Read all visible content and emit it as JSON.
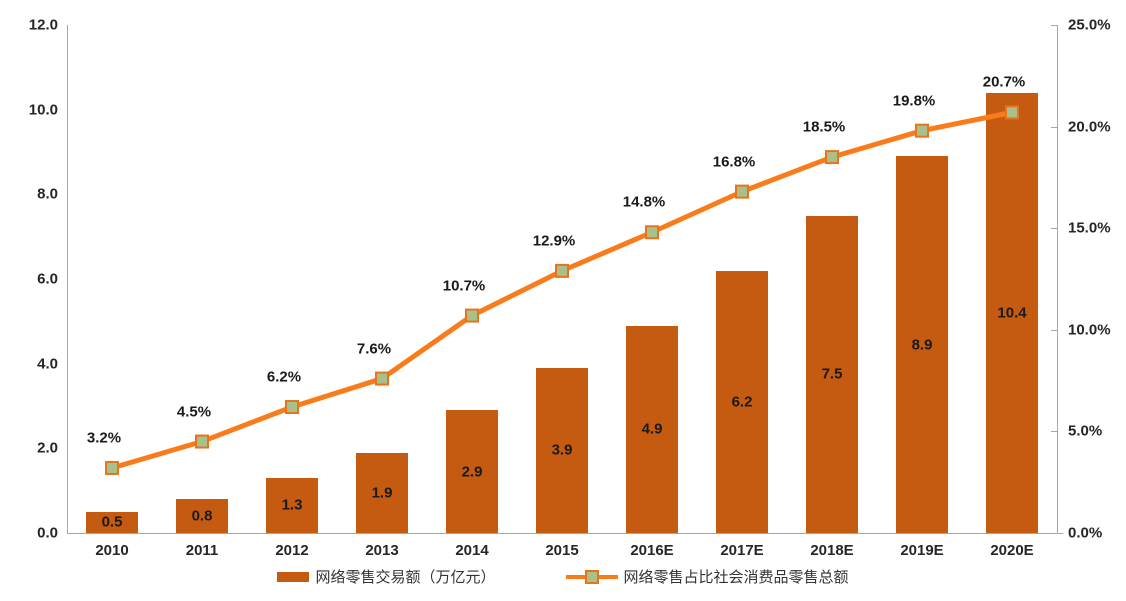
{
  "chart_data": {
    "type": "bar",
    "title": "",
    "categories": [
      "2010",
      "2011",
      "2012",
      "2013",
      "2014",
      "2015",
      "2016E",
      "2017E",
      "2018E",
      "2019E",
      "2020E"
    ],
    "series": [
      {
        "name": "网络零售交易额（万亿元）",
        "type": "bar",
        "axis": "left",
        "values": [
          0.5,
          0.8,
          1.3,
          1.9,
          2.9,
          3.9,
          4.9,
          6.2,
          7.5,
          8.9,
          10.4
        ],
        "labels": [
          "0.5",
          "0.8",
          "1.3",
          "1.9",
          "2.9",
          "3.9",
          "4.9",
          "6.2",
          "7.5",
          "8.9",
          "10.4"
        ],
        "color": "#C55A11"
      },
      {
        "name": "网络零售占比社会消费品零售总额",
        "type": "line",
        "axis": "right",
        "values": [
          3.2,
          4.5,
          6.2,
          7.6,
          10.7,
          12.9,
          14.8,
          16.8,
          18.5,
          19.8,
          20.7
        ],
        "labels": [
          "3.2%",
          "4.5%",
          "6.2%",
          "7.6%",
          "10.7%",
          "12.9%",
          "14.8%",
          "16.8%",
          "18.5%",
          "19.8%",
          "20.7%"
        ],
        "color": "#F97C1C",
        "marker_fill": "#A9C08A",
        "marker_border": "#E8731A"
      }
    ],
    "left_axis": {
      "min": 0,
      "max": 12,
      "ticks": [
        "0.0",
        "2.0",
        "4.0",
        "6.0",
        "8.0",
        "10.0",
        "12.0"
      ]
    },
    "right_axis": {
      "min": 0,
      "max": 25,
      "ticks": [
        "0.0%",
        "5.0%",
        "10.0%",
        "15.0%",
        "20.0%",
        "25.0%"
      ]
    },
    "grid": false,
    "legend_position": "bottom",
    "colors": {
      "axis_line": "#a6a6a6",
      "text": "#262626",
      "data_label": "#1a1a1a"
    }
  }
}
